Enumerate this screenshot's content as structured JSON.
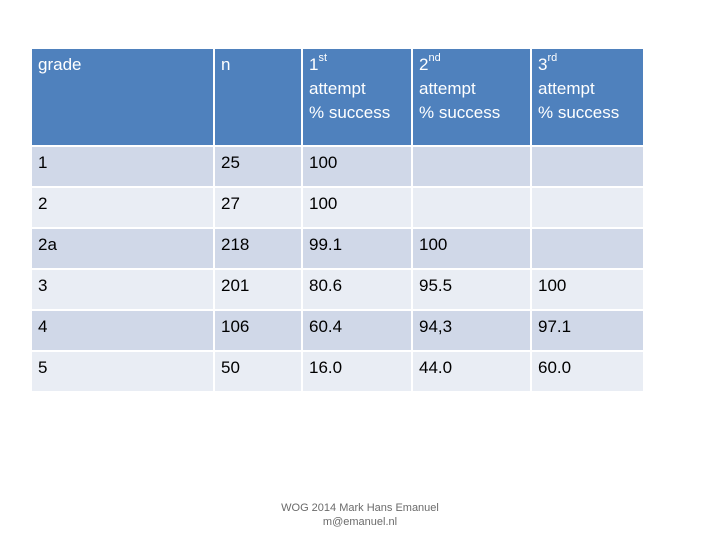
{
  "table": {
    "headers": [
      {
        "lines": [
          "grade"
        ]
      },
      {
        "lines": [
          "n"
        ]
      },
      {
        "ordinal_num": "1",
        "ordinal_sup": "st",
        "lines": [
          "attempt",
          "% success"
        ]
      },
      {
        "ordinal_num": "2",
        "ordinal_sup": "nd",
        "lines": [
          "attempt",
          "% success"
        ]
      },
      {
        "ordinal_num": "3",
        "ordinal_sup": "rd",
        "lines": [
          "attempt",
          "% success"
        ]
      }
    ],
    "rows": [
      [
        "1",
        "25",
        "100",
        "",
        ""
      ],
      [
        "2",
        "27",
        "100",
        "",
        ""
      ],
      [
        "2a",
        "218",
        "99.1",
        "100",
        ""
      ],
      [
        "3",
        "201",
        "80.6",
        "95.5",
        "100"
      ],
      [
        "4",
        "106",
        "60.4",
        "94,3",
        "97.1"
      ],
      [
        "5",
        "50",
        "16.0",
        "44.0",
        "60.0"
      ]
    ]
  },
  "footer": {
    "line1": "WOG 2014 Mark Hans Emanuel",
    "line2": "m@emanuel.nl"
  },
  "colors": {
    "header_bg": "#4f81bd",
    "row_odd_bg": "#d0d8e8",
    "row_even_bg": "#e9edf4"
  }
}
